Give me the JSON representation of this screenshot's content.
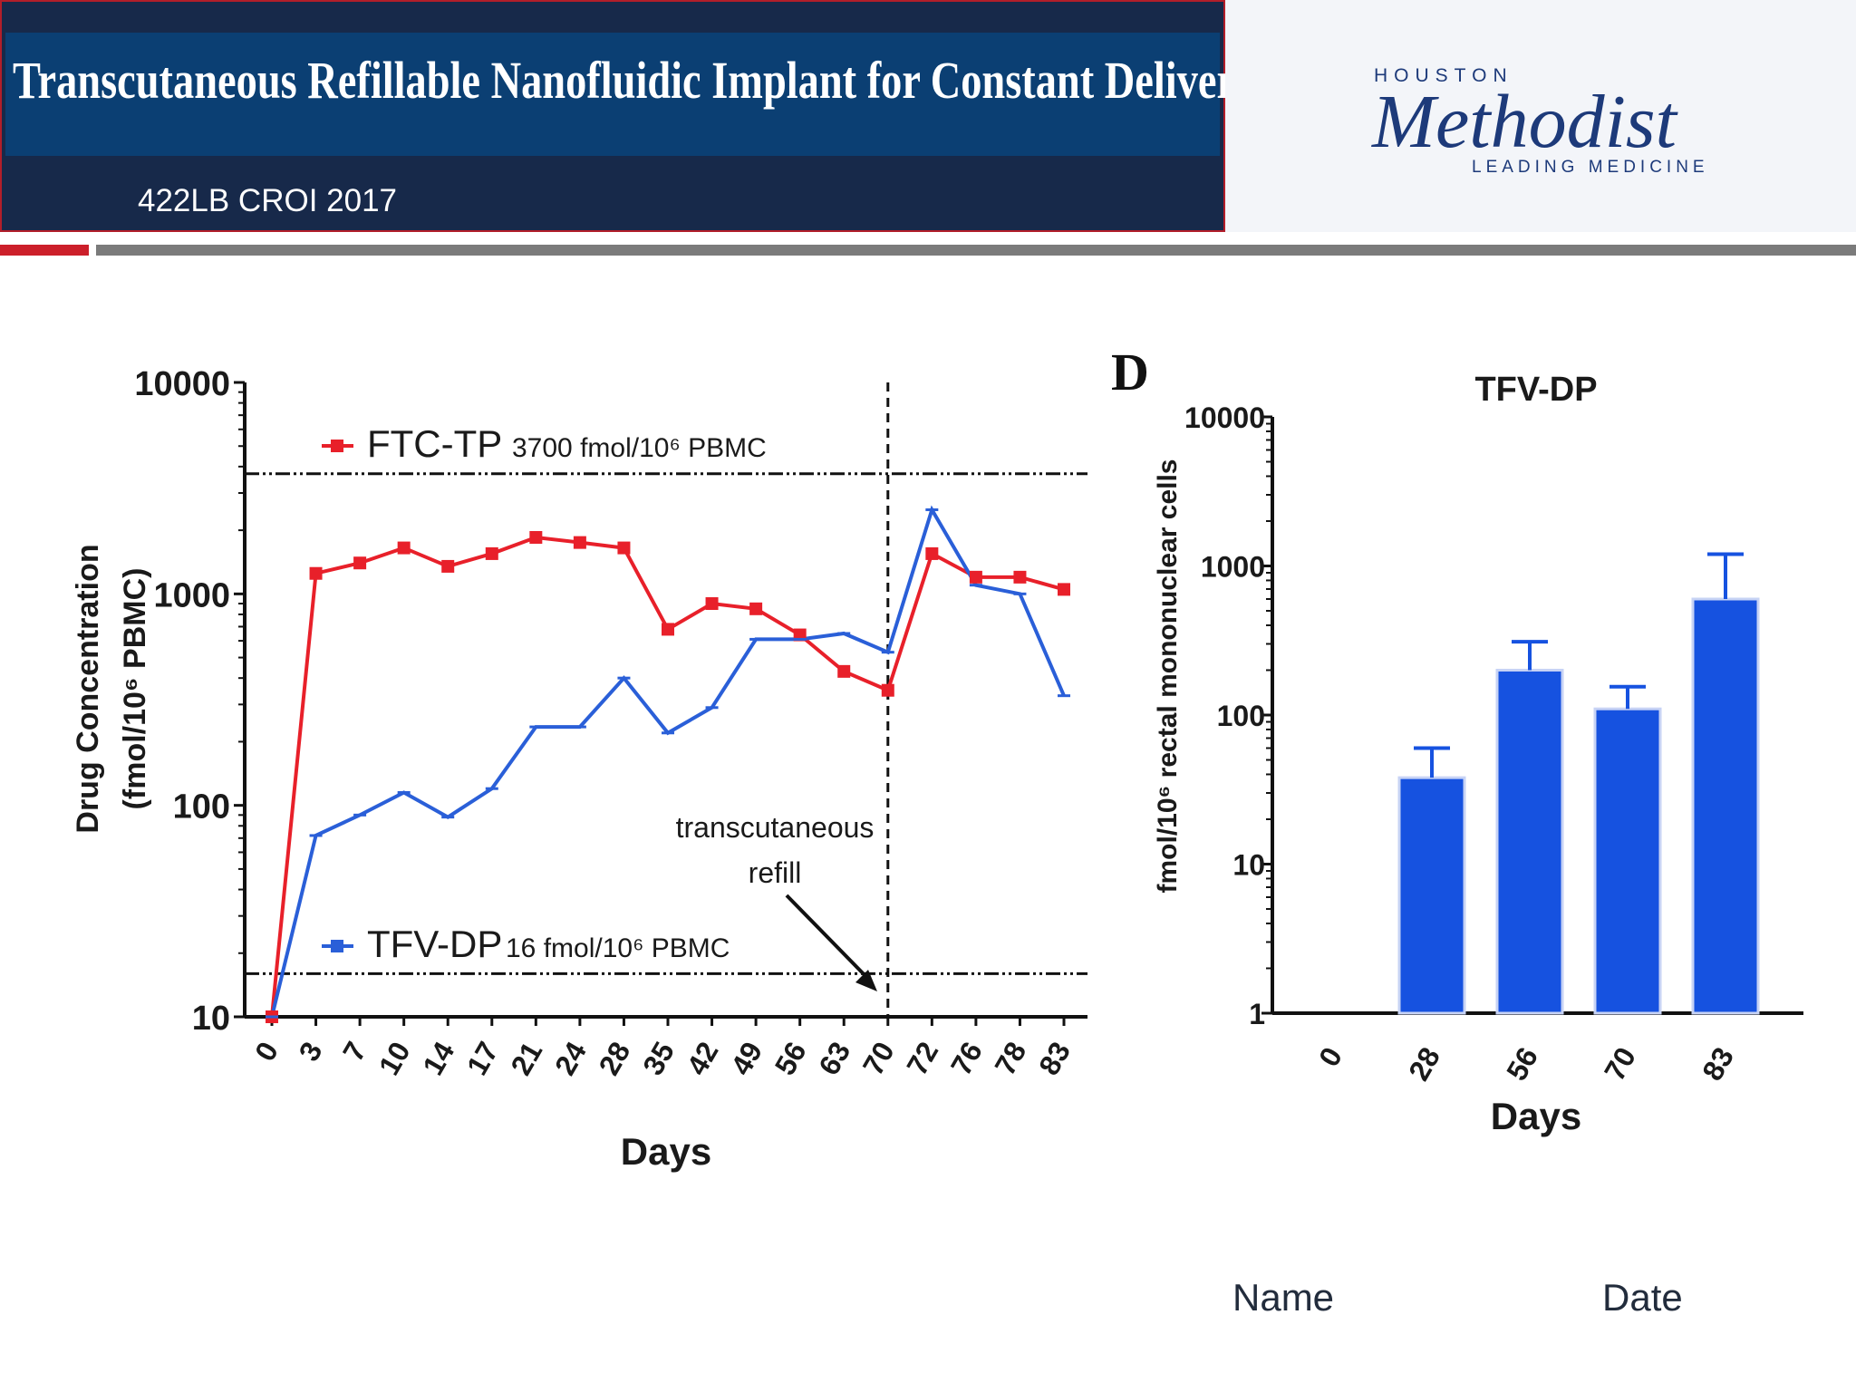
{
  "header": {
    "title": "Transcutaneous Refillable Nanofluidic Implant for Constant Delivery of HIV PrEP",
    "subtitle": "422LB CROI 2017",
    "logo": {
      "top": "HOUSTON",
      "name": "Methodist",
      "tagline": "LEADING MEDICINE"
    }
  },
  "colors": {
    "ftc": "#e8202a",
    "tfv": "#2a5fd8",
    "bar": "#1652e0",
    "navy": "#17294a",
    "accent_red": "#cc1f2a"
  },
  "chart_data": [
    {
      "type": "line",
      "title": "",
      "xlabel": "Days",
      "ylabel_line1": "Drug Concentration",
      "ylabel_line2": "(fmol/10⁶ PBMC)",
      "yscale": "log",
      "ylim": [
        10,
        10000
      ],
      "yticks": [
        "10",
        "100",
        "1000",
        "10000"
      ],
      "categories": [
        "0",
        "3",
        "7",
        "10",
        "14",
        "17",
        "21",
        "24",
        "28",
        "35",
        "42",
        "49",
        "56",
        "63",
        "70",
        "72",
        "76",
        "78",
        "83"
      ],
      "series": [
        {
          "name": "FTC-TP",
          "note": "3700 fmol/10⁶ PBMC",
          "threshold": 3700,
          "values": [
            10,
            1250,
            1400,
            1650,
            1350,
            1550,
            1850,
            1750,
            1650,
            680,
            900,
            850,
            640,
            430,
            350,
            1550,
            1200,
            1200,
            1050
          ]
        },
        {
          "name": "TFV-DP",
          "note": "16 fmol/10⁶ PBMC",
          "threshold": 16,
          "values": [
            10,
            72,
            90,
            115,
            88,
            120,
            235,
            235,
            400,
            220,
            290,
            610,
            610,
            650,
            530,
            2500,
            1100,
            1000,
            330
          ]
        }
      ],
      "refill_day": "70",
      "annotation_line1": "transcutaneous",
      "annotation_line2": "refill"
    },
    {
      "type": "bar",
      "panel_label": "D",
      "title": "TFV-DP",
      "xlabel": "Days",
      "ylabel": "fmol/10⁶ rectal mononuclear cells",
      "yscale": "log",
      "ylim": [
        1,
        10000
      ],
      "yticks": [
        "1",
        "10",
        "100",
        "1000",
        "10000"
      ],
      "categories": [
        "0",
        "28",
        "56",
        "70",
        "83"
      ],
      "values": [
        null,
        38,
        200,
        110,
        600
      ],
      "errors_upper": [
        null,
        60,
        310,
        155,
        1200
      ]
    }
  ],
  "footer": {
    "name": "Name",
    "date": "Date"
  }
}
